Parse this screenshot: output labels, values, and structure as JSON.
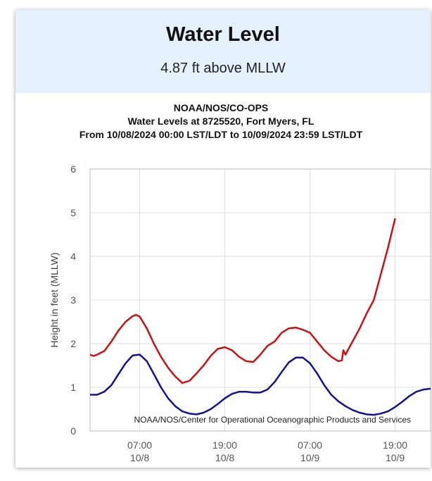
{
  "header": {
    "title": "Water Level",
    "subtitle": "4.87 ft above MLLW"
  },
  "chart_data": {
    "type": "line",
    "title_lines": [
      "NOAA/NOS/CO-OPS",
      "Water Levels at 8725520, Fort Myers, FL",
      "From 10/08/2024 00:00 LST/LDT to 10/09/2024 23:59 LST/LDT"
    ],
    "ylabel": "Height in feet (MLLW)",
    "xlabel": "",
    "ylim": [
      0,
      6
    ],
    "yticks": [
      "0",
      "1",
      "2",
      "3",
      "4",
      "5",
      "6"
    ],
    "xlim_hours": [
      0,
      48
    ],
    "xticks": [
      {
        "hour": 7,
        "time": "07:00",
        "date": "10/8"
      },
      {
        "hour": 19,
        "time": "19:00",
        "date": "10/8"
      },
      {
        "hour": 31,
        "time": "07:00",
        "date": "10/9"
      },
      {
        "hour": 43,
        "time": "19:00",
        "date": "10/9"
      }
    ],
    "grid": true,
    "annotation": "NOAA/NOS/Center for Operational Oceanographic Products and Services",
    "series": [
      {
        "color": "#cc1111",
        "x": [
          0,
          0.5,
          1,
          2,
          3,
          4,
          5,
          6,
          6.5,
          7,
          8,
          9,
          10,
          11,
          12,
          13,
          14,
          15,
          16,
          17,
          18,
          19,
          20,
          21,
          22,
          23,
          24,
          25,
          26,
          27,
          28,
          29,
          30,
          31,
          32,
          33,
          34,
          35,
          35.5,
          35.7,
          36,
          37,
          38,
          39,
          40,
          41,
          42,
          43
        ],
        "values": [
          1.75,
          1.72,
          1.75,
          1.83,
          2.05,
          2.3,
          2.5,
          2.63,
          2.66,
          2.62,
          2.35,
          2.0,
          1.7,
          1.45,
          1.25,
          1.1,
          1.15,
          1.32,
          1.5,
          1.72,
          1.88,
          1.92,
          1.85,
          1.7,
          1.6,
          1.58,
          1.75,
          1.95,
          2.05,
          2.25,
          2.35,
          2.37,
          2.32,
          2.25,
          2.05,
          1.85,
          1.7,
          1.6,
          1.62,
          1.85,
          1.75,
          2.05,
          2.35,
          2.7,
          3.0,
          3.6,
          4.2,
          4.87
        ]
      },
      {
        "color": "#111199",
        "x": [
          0,
          1,
          2,
          3,
          4,
          5,
          6,
          7,
          8,
          9,
          10,
          11,
          12,
          13,
          14,
          15,
          16,
          17,
          18,
          19,
          20,
          21,
          22,
          23,
          24,
          25,
          26,
          27,
          28,
          29,
          30,
          31,
          32,
          33,
          34,
          35,
          36,
          37,
          38,
          39,
          40,
          41,
          42,
          43,
          44,
          45,
          46,
          47,
          48
        ],
        "values": [
          0.83,
          0.83,
          0.9,
          1.05,
          1.3,
          1.55,
          1.73,
          1.75,
          1.6,
          1.3,
          1.0,
          0.75,
          0.57,
          0.45,
          0.4,
          0.38,
          0.42,
          0.5,
          0.62,
          0.75,
          0.85,
          0.9,
          0.9,
          0.88,
          0.88,
          0.95,
          1.12,
          1.35,
          1.57,
          1.68,
          1.68,
          1.55,
          1.32,
          1.05,
          0.83,
          0.68,
          0.57,
          0.48,
          0.42,
          0.38,
          0.37,
          0.4,
          0.45,
          0.55,
          0.67,
          0.8,
          0.9,
          0.95,
          0.97
        ]
      }
    ]
  }
}
